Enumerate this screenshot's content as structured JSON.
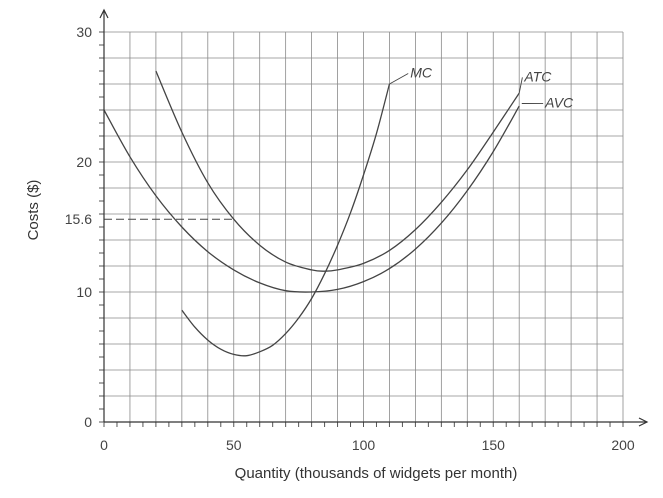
{
  "chart_data": {
    "type": "line",
    "xlabel": "Quantity (thousands of widgets per month)",
    "ylabel": "Costs ($)",
    "xlim": [
      0,
      200
    ],
    "ylim": [
      0,
      30
    ],
    "x_ticks": [
      {
        "value": 0,
        "label": "0"
      },
      {
        "value": 50,
        "label": "50"
      },
      {
        "value": 100,
        "label": "100"
      },
      {
        "value": 150,
        "label": "150"
      },
      {
        "value": 200,
        "label": "200"
      }
    ],
    "y_ticks": [
      {
        "value": 0,
        "label": "0"
      },
      {
        "value": 10,
        "label": "10"
      },
      {
        "value": 15.6,
        "label": "15.6"
      },
      {
        "value": 20,
        "label": "20"
      },
      {
        "value": 30,
        "label": "30"
      }
    ],
    "grid": true,
    "grid_step": {
      "x": 10,
      "y": 2
    },
    "reference_line": {
      "y": 15.6,
      "x_from": 0,
      "x_to": 50,
      "style": "dashed"
    },
    "series": [
      {
        "name": "MC",
        "x": [
          30,
          35,
          40,
          45,
          50,
          55,
          60,
          65,
          70,
          75,
          80,
          85,
          90,
          95,
          100,
          105,
          110
        ],
        "y": [
          8.6,
          7.3,
          6.3,
          5.6,
          5.2,
          5.1,
          5.4,
          5.9,
          6.8,
          8.0,
          9.5,
          11.4,
          13.6,
          16.1,
          19.0,
          22.2,
          26.0
        ]
      },
      {
        "name": "ATC",
        "x": [
          20,
          30,
          40,
          50,
          60,
          70,
          80,
          85,
          90,
          100,
          110,
          120,
          130,
          140,
          150,
          160
        ],
        "y": [
          27.0,
          22.3,
          18.4,
          15.6,
          13.6,
          12.3,
          11.7,
          11.6,
          11.7,
          12.2,
          13.2,
          14.8,
          16.9,
          19.4,
          22.3,
          25.3
        ]
      },
      {
        "name": "AVC",
        "x": [
          0,
          10,
          20,
          30,
          40,
          50,
          60,
          70,
          80,
          90,
          100,
          110,
          120,
          130,
          140,
          150,
          160
        ],
        "y": [
          24.0,
          20.4,
          17.4,
          15.0,
          13.1,
          11.7,
          10.7,
          10.1,
          10.0,
          10.2,
          10.8,
          11.8,
          13.3,
          15.3,
          17.8,
          20.8,
          24.3
        ]
      }
    ],
    "curve_labels": [
      {
        "text": "MC",
        "x": 118,
        "y": 26.5,
        "leader_to": {
          "x": 110,
          "y": 26.0
        }
      },
      {
        "text": "ATC",
        "x": 162,
        "y": 26.2,
        "leader_to": {
          "x": 160,
          "y": 25.3
        }
      },
      {
        "text": "AVC",
        "x": 170,
        "y": 24.2,
        "leader_to": {
          "x": 161,
          "y": 24.5
        }
      }
    ]
  }
}
